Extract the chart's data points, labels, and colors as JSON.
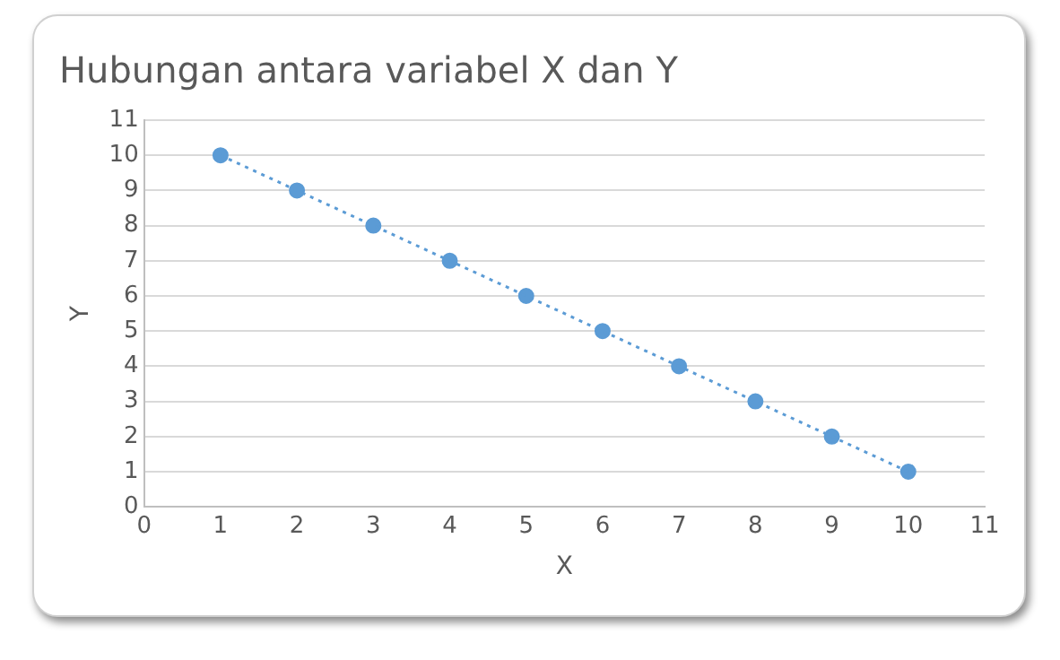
{
  "chart_data": {
    "type": "scatter",
    "title": "Hubungan antara variabel X dan Y",
    "xlabel": "X",
    "ylabel": "Y",
    "xlim": [
      0,
      11
    ],
    "xticks": [
      0,
      1,
      2,
      3,
      4,
      5,
      6,
      7,
      8,
      9,
      10,
      11
    ],
    "ylim": [
      0,
      11
    ],
    "yticks": [
      0,
      1,
      2,
      3,
      4,
      5,
      6,
      7,
      8,
      9,
      10,
      11
    ],
    "grid": "y",
    "legend": false,
    "marker": "circle",
    "series": [
      {
        "color": "#5b9bd5",
        "x": [
          1,
          2,
          3,
          4,
          5,
          6,
          7,
          8,
          9,
          10
        ],
        "values": [
          10,
          9,
          8,
          7,
          6,
          5,
          4,
          3,
          2,
          1
        ]
      },
      {
        "type": "line",
        "color": "#5b9bd5",
        "x": [
          1,
          10
        ],
        "values": [
          10,
          1
        ],
        "line_style": "dotted",
        "marker": "none"
      }
    ]
  }
}
